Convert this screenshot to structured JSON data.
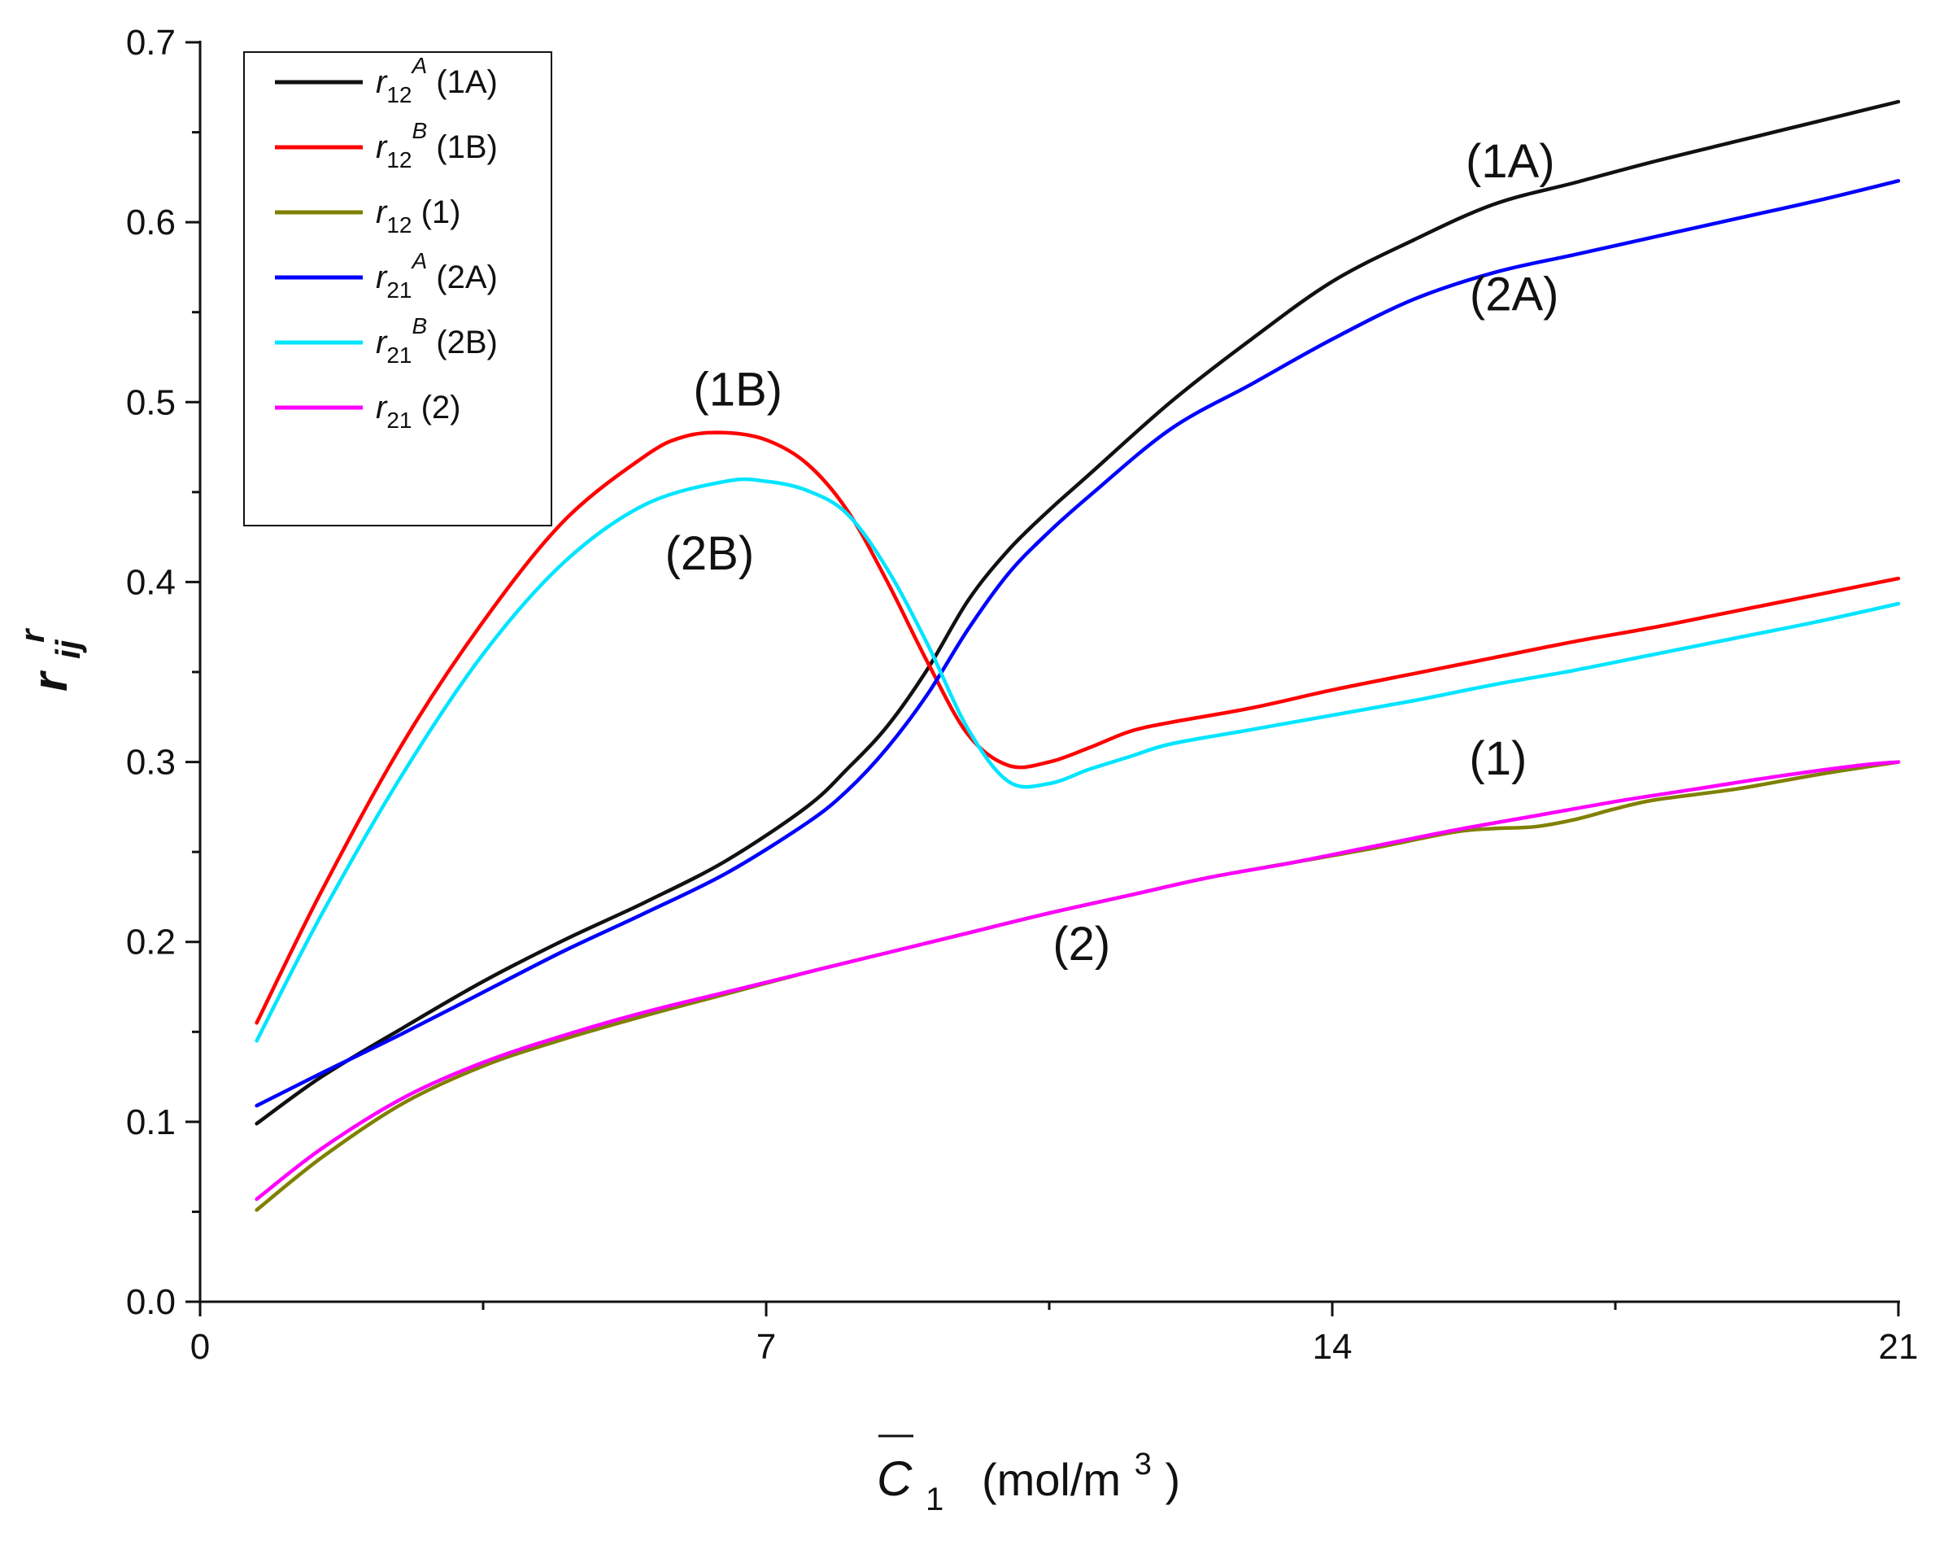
{
  "chart_data": {
    "type": "line",
    "title": "",
    "xlabel": {
      "base": "C",
      "sub": "1",
      "unit_pre": "(mol/m",
      "unit_sup": "3",
      "unit_post": ")"
    },
    "ylabel": {
      "base": "r",
      "sub": "ij",
      "sup": "r"
    },
    "xlim": [
      0,
      21
    ],
    "ylim": [
      0.0,
      0.7
    ],
    "x_ticks": [
      0,
      7,
      14,
      21
    ],
    "x_tick_labels": [
      "0",
      "7",
      "14",
      "21"
    ],
    "y_ticks": [
      0.0,
      0.1,
      0.2,
      0.3,
      0.4,
      0.5,
      0.6,
      0.7
    ],
    "y_tick_labels": [
      "0.0",
      "0.1",
      "0.2",
      "0.3",
      "0.4",
      "0.5",
      "0.6",
      "0.7"
    ],
    "legend_position": "top-left",
    "colors": {
      "axis": "#111111"
    },
    "series": [
      {
        "id": "1A",
        "legend": {
          "base": "r",
          "sub": "12",
          "sup": "A",
          "tag": " (1A)"
        },
        "color": "#111111",
        "x": [
          0.7,
          1.5,
          2.5,
          3.5,
          4.5,
          5.5,
          6.5,
          7.5,
          8.0,
          8.5,
          9.0,
          9.5,
          10.0,
          10.5,
          11.0,
          12.0,
          13.0,
          14.0,
          15.0,
          16.0,
          17.0,
          18.0,
          19.0,
          20.0,
          21.0
        ],
        "values": [
          0.099,
          0.125,
          0.152,
          0.178,
          0.201,
          0.222,
          0.245,
          0.275,
          0.296,
          0.32,
          0.352,
          0.39,
          0.418,
          0.44,
          0.46,
          0.5,
          0.535,
          0.567,
          0.59,
          0.61,
          0.622,
          0.634,
          0.645,
          0.656,
          0.667
        ]
      },
      {
        "id": "1B",
        "legend": {
          "base": "r",
          "sub": "12",
          "sup": "B",
          "tag": " (1B)"
        },
        "color": "#ff0000",
        "x": [
          0.7,
          1.5,
          2.5,
          3.5,
          4.5,
          5.5,
          6.0,
          6.5,
          7.0,
          7.5,
          8.0,
          8.5,
          9.0,
          9.5,
          10.0,
          10.5,
          11.0,
          11.5,
          12.0,
          13.0,
          14.0,
          15.0,
          16.0,
          17.0,
          18.0,
          19.0,
          20.0,
          21.0
        ],
        "values": [
          0.155,
          0.228,
          0.31,
          0.378,
          0.434,
          0.47,
          0.481,
          0.483,
          0.479,
          0.466,
          0.44,
          0.4,
          0.355,
          0.315,
          0.298,
          0.3,
          0.308,
          0.317,
          0.322,
          0.33,
          0.34,
          0.349,
          0.358,
          0.367,
          0.375,
          0.384,
          0.393,
          0.402
        ]
      },
      {
        "id": "1",
        "legend": {
          "base": "r",
          "sub": "12",
          "sup": "",
          "tag": " (1)"
        },
        "color": "#808000",
        "x": [
          0.7,
          1.5,
          2.5,
          3.5,
          4.5,
          5.5,
          6.5,
          7.5,
          8.5,
          9.5,
          10.5,
          11.5,
          12.5,
          13.5,
          14.5,
          15.5,
          16.0,
          16.5,
          17.0,
          17.5,
          18.0,
          19.0,
          20.0,
          21.0
        ],
        "values": [
          0.051,
          0.08,
          0.11,
          0.131,
          0.146,
          0.159,
          0.171,
          0.183,
          0.194,
          0.205,
          0.216,
          0.226,
          0.236,
          0.244,
          0.252,
          0.261,
          0.263,
          0.264,
          0.268,
          0.274,
          0.279,
          0.285,
          0.293,
          0.3
        ]
      },
      {
        "id": "2A",
        "legend": {
          "base": "r",
          "sub": "21",
          "sup": "A",
          "tag": " (2A)"
        },
        "color": "#0000ff",
        "x": [
          0.7,
          1.5,
          2.5,
          3.5,
          4.5,
          5.5,
          6.5,
          7.5,
          8.0,
          8.5,
          9.0,
          9.5,
          10.0,
          10.5,
          11.0,
          12.0,
          13.0,
          14.0,
          15.0,
          16.0,
          17.0,
          18.0,
          19.0,
          20.0,
          21.0
        ],
        "values": [
          0.109,
          0.127,
          0.149,
          0.172,
          0.195,
          0.216,
          0.238,
          0.266,
          0.284,
          0.308,
          0.338,
          0.374,
          0.405,
          0.428,
          0.448,
          0.485,
          0.51,
          0.535,
          0.557,
          0.572,
          0.582,
          0.592,
          0.602,
          0.612,
          0.623
        ]
      },
      {
        "id": "2B",
        "legend": {
          "base": "r",
          "sub": "21",
          "sup": "B",
          "tag": " (2B)"
        },
        "color": "#00e5ff",
        "x": [
          0.7,
          1.5,
          2.5,
          3.5,
          4.5,
          5.5,
          6.5,
          7.0,
          7.5,
          8.0,
          8.5,
          9.0,
          9.5,
          10.0,
          10.5,
          11.0,
          11.5,
          12.0,
          13.0,
          14.0,
          15.0,
          16.0,
          17.0,
          18.0,
          19.0,
          20.0,
          21.0
        ],
        "values": [
          0.145,
          0.215,
          0.293,
          0.36,
          0.411,
          0.443,
          0.456,
          0.456,
          0.451,
          0.438,
          0.407,
          0.365,
          0.318,
          0.289,
          0.288,
          0.296,
          0.303,
          0.31,
          0.318,
          0.326,
          0.334,
          0.343,
          0.351,
          0.36,
          0.369,
          0.378,
          0.388
        ]
      },
      {
        "id": "2",
        "legend": {
          "base": "r",
          "sub": "21",
          "sup": "",
          "tag": " (2)"
        },
        "color": "#ff00ff",
        "x": [
          0.7,
          1.5,
          2.5,
          3.5,
          4.5,
          5.5,
          6.5,
          7.5,
          8.5,
          9.5,
          10.5,
          11.5,
          12.5,
          13.5,
          14.5,
          15.5,
          16.5,
          17.5,
          18.5,
          19.5,
          20.5,
          21.0
        ],
        "values": [
          0.057,
          0.085,
          0.113,
          0.133,
          0.148,
          0.161,
          0.172,
          0.183,
          0.194,
          0.205,
          0.216,
          0.226,
          0.236,
          0.244,
          0.253,
          0.262,
          0.27,
          0.278,
          0.285,
          0.292,
          0.298,
          0.3
        ]
      }
    ],
    "annotations": [
      {
        "text": "(1A)",
        "x": 16.2,
        "y": 0.625
      },
      {
        "text": "(2A)",
        "x": 16.25,
        "y": 0.551
      },
      {
        "text": "(1B)",
        "x": 6.65,
        "y": 0.498
      },
      {
        "text": "(2B)",
        "x": 6.3,
        "y": 0.407
      },
      {
        "text": "(1)",
        "x": 16.05,
        "y": 0.293
      },
      {
        "text": "(2)",
        "x": 10.9,
        "y": 0.19
      }
    ]
  }
}
